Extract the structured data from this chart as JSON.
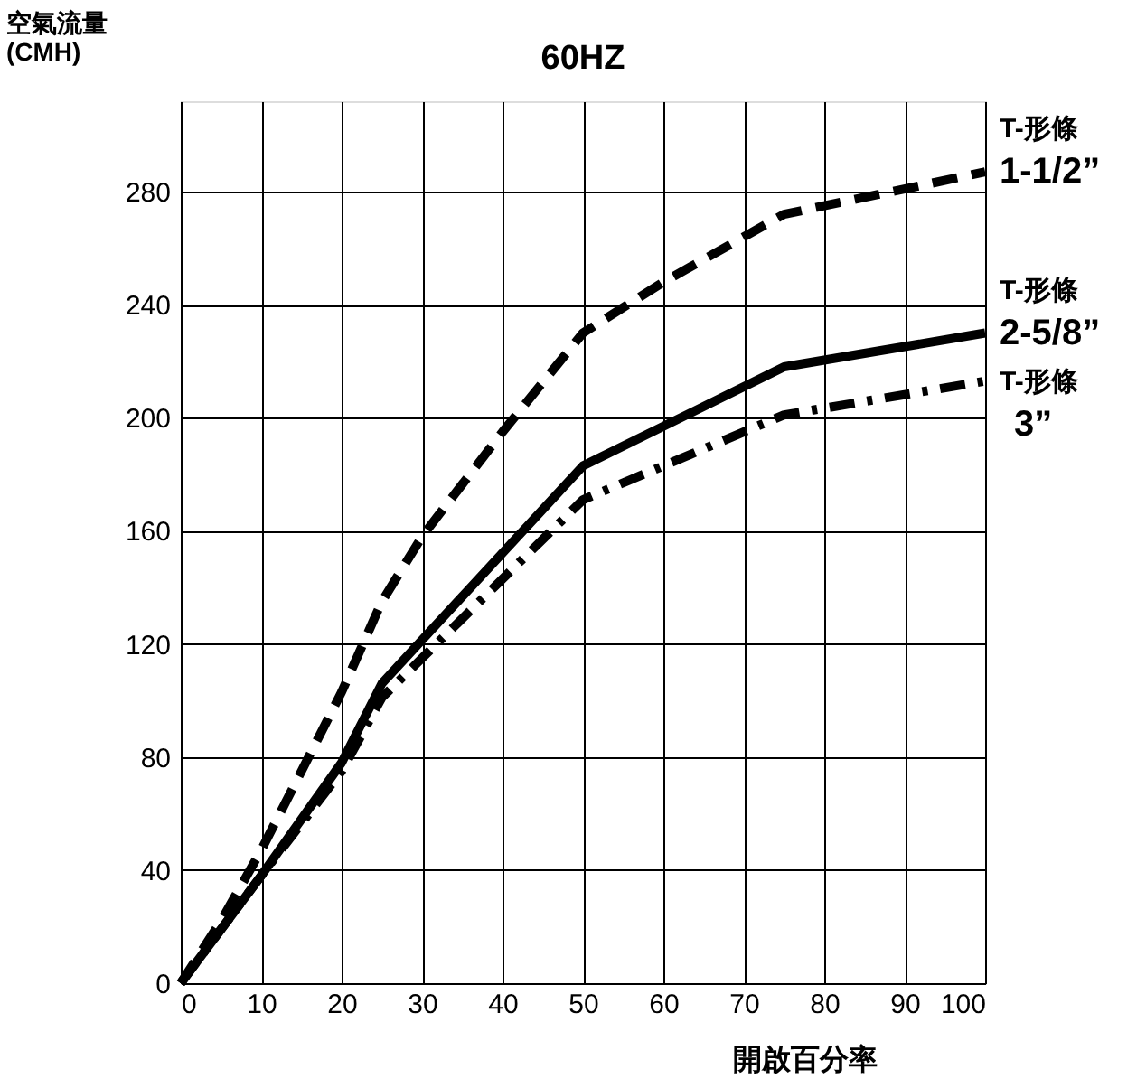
{
  "chart_data": {
    "type": "line",
    "title": "60HZ",
    "xlabel": "開啟百分率",
    "ylabel": "空氣流量\n(CMH)",
    "xlim": [
      0,
      100
    ],
    "xticks": [
      0,
      10,
      20,
      30,
      40,
      50,
      60,
      70,
      80,
      90,
      100
    ],
    "ylim": [
      0,
      312
    ],
    "yticks": [
      0,
      40,
      80,
      120,
      160,
      200,
      240,
      280
    ],
    "grid": true,
    "marker": "none",
    "series": [
      {
        "name": "T-形條 1-1/2”",
        "color": "#000000",
        "line_style": "dashed",
        "x": [
          0,
          5,
          10,
          20,
          25,
          30,
          40,
          50,
          60,
          75,
          100
        ],
        "values": [
          0,
          22,
          47,
          103,
          135,
          158,
          195,
          230,
          248,
          272,
          287
        ]
      },
      {
        "name": "T-形條 2-5/8”",
        "color": "#000000",
        "line_style": "solid",
        "x": [
          0,
          10,
          20,
          25,
          50,
          75,
          100
        ],
        "values": [
          0,
          38,
          78,
          106,
          183,
          218,
          230
        ]
      },
      {
        "name": "T-形條 3”",
        "color": "#000000",
        "line_style": "dashdot",
        "x": [
          0,
          10,
          20,
          25,
          40,
          50,
          75,
          100
        ],
        "values": [
          0,
          38,
          75,
          101,
          143,
          171,
          201,
          213
        ]
      }
    ]
  }
}
